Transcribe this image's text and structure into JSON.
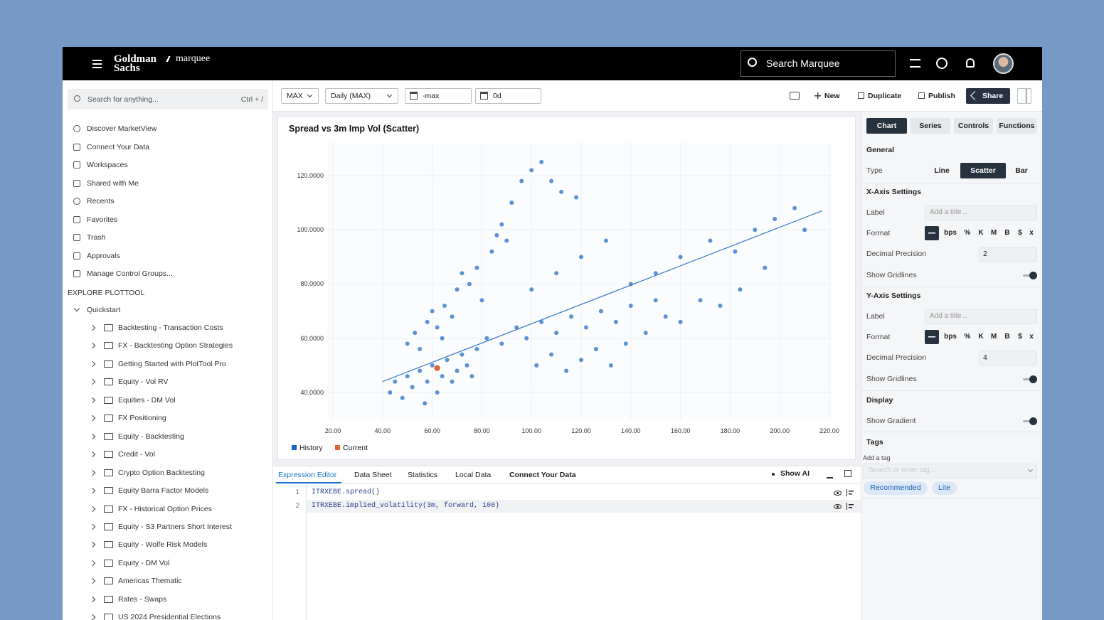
{
  "header": {
    "logo_top": "Goldman",
    "logo_bottom": "Sachs",
    "product": "marquee",
    "search": "Search Marquee"
  },
  "sidebar": {
    "search": "Search for anything...",
    "shortcut": "Ctrl + /",
    "nav": [
      "Discover MarketView",
      "Connect Your Data",
      "Workspaces",
      "Shared with Me",
      "Recents",
      "Favorites",
      "Trash",
      "Approvals",
      "Manage Control Groups..."
    ],
    "section": "EXPLORE PLOTTOOL",
    "group": "Quickstart",
    "folders": [
      "Backtesting - Transaction Costs",
      "FX - Backtesting Option Strategies",
      "Getting Started with PlotTool Pro",
      "Equity - Vol RV",
      "Equities - DM Vol",
      "FX Positioning",
      "Equity - Backtesting",
      "Credit - Vol",
      "Crypto Option Backtesting",
      "Equity Barra Factor Models",
      "FX - Historical Option Prices",
      "Equity - S3 Partners Short Interest",
      "Equity - Wolfe Risk Models",
      "Equity - DM Vol",
      "Americas Thematic",
      "Rates - Swaps",
      "US 2024 Presidential Elections"
    ]
  },
  "toolbar": {
    "range": "MAX",
    "frequency": "Daily (MAX)",
    "start": "-max",
    "end": "0d",
    "actions": [
      "New",
      "Duplicate",
      "Publish"
    ],
    "share": "Share"
  },
  "chart_data": {
    "type": "scatter",
    "title": "Spread vs 3m Imp Vol (Scatter)",
    "xlim": [
      20,
      220
    ],
    "ylim": [
      30,
      132
    ],
    "xticks": [
      {
        "value": 20,
        "label": "20.00"
      },
      {
        "value": 40,
        "label": "40.00"
      },
      {
        "value": 60,
        "label": "60.00"
      },
      {
        "value": 80,
        "label": "80.00"
      },
      {
        "value": 100,
        "label": "100.00"
      },
      {
        "value": 120,
        "label": "120.00"
      },
      {
        "value": 140,
        "label": "140.00"
      },
      {
        "value": 160,
        "label": "160.00"
      },
      {
        "value": 180,
        "label": "180.00"
      },
      {
        "value": 200,
        "label": "200.00"
      },
      {
        "value": 220,
        "label": "220.00"
      }
    ],
    "yticks": [
      {
        "value": 40,
        "label": "40.0000"
      },
      {
        "value": 60,
        "label": "60.0000"
      },
      {
        "value": 80,
        "label": "80.0000"
      },
      {
        "value": 100,
        "label": "100.0000"
      },
      {
        "value": 120,
        "label": "120.0000"
      }
    ],
    "grid": true,
    "series": [
      {
        "name": "History",
        "color": "#1565c0",
        "x": [
          43,
          45,
          48,
          50,
          52,
          55,
          57,
          58,
          60,
          62,
          64,
          66,
          68,
          70,
          72,
          74,
          76,
          78,
          50,
          53,
          55,
          58,
          60,
          62,
          65,
          68,
          70,
          72,
          75,
          78,
          80,
          64,
          84,
          86,
          88,
          92,
          96,
          100,
          104,
          108,
          112,
          118,
          90,
          82,
          88,
          94,
          98,
          104,
          110,
          116,
          122,
          128,
          134,
          140,
          102,
          108,
          114,
          120,
          126,
          132,
          138,
          146,
          154,
          160,
          168,
          176,
          184,
          150,
          160,
          172,
          182,
          190,
          198,
          206,
          210,
          194,
          120,
          130,
          140,
          150,
          100,
          110
        ],
        "values": [
          40,
          44,
          38,
          46,
          42,
          48,
          36,
          44,
          50,
          40,
          46,
          52,
          44,
          48,
          54,
          50,
          46,
          56,
          58,
          62,
          56,
          66,
          70,
          64,
          72,
          68,
          78,
          84,
          80,
          86,
          74,
          60,
          92,
          98,
          102,
          110,
          118,
          122,
          125,
          118,
          114,
          112,
          96,
          60,
          58,
          64,
          60,
          66,
          62,
          68,
          64,
          70,
          66,
          72,
          50,
          54,
          48,
          52,
          56,
          50,
          58,
          62,
          68,
          66,
          74,
          72,
          78,
          84,
          90,
          96,
          92,
          100,
          104,
          108,
          100,
          86,
          90,
          96,
          80,
          74,
          78,
          84
        ]
      },
      {
        "name": "Current",
        "color": "#e0663a",
        "x": [
          62
        ],
        "values": [
          49
        ]
      }
    ],
    "trend_line": {
      "x": [
        40,
        217
      ],
      "y": [
        44,
        107
      ]
    }
  },
  "editor": {
    "tabs": [
      "Expression Editor",
      "Data Sheet",
      "Statistics",
      "Local Data",
      "Connect Your Data"
    ],
    "show_ai": "Show AI",
    "lines": [
      {
        "number": 1,
        "code": "ITRXEBE.spread()"
      },
      {
        "number": 2,
        "code": "ITRXEBE.implied_volatility(3m, forward, 100)"
      }
    ]
  },
  "settings": {
    "tabs": [
      "Chart",
      "Series",
      "Controls",
      "Functions"
    ],
    "general": "General",
    "type_label": "Type",
    "types": [
      "Line",
      "Scatter",
      "Bar"
    ],
    "x_axis": {
      "title": "X-Axis Settings",
      "label": "Label",
      "placeholder": "Add a title...",
      "format": "Format",
      "formats": [
        "bps",
        "%",
        "K",
        "M",
        "B",
        "$",
        "x"
      ],
      "precision_label": "Decimal Precision",
      "precision": 2,
      "gridlines": "Show Gridlines"
    },
    "y_axis": {
      "title": "Y-Axis Settings",
      "label": "Label",
      "placeholder": "Add a title...",
      "format": "Format",
      "formats": [
        "bps",
        "%",
        "K",
        "M",
        "B",
        "$",
        "x"
      ],
      "precision_label": "Decimal Precision",
      "precision": 4,
      "gridlines": "Show Gridlines"
    },
    "display": "Display",
    "gradient": "Show Gradient",
    "tags": "Tags",
    "add_tag": "Add a tag",
    "tag_placeholder": "Search or enter tag...",
    "tag_chips": [
      "Recommended",
      "Lite"
    ]
  }
}
